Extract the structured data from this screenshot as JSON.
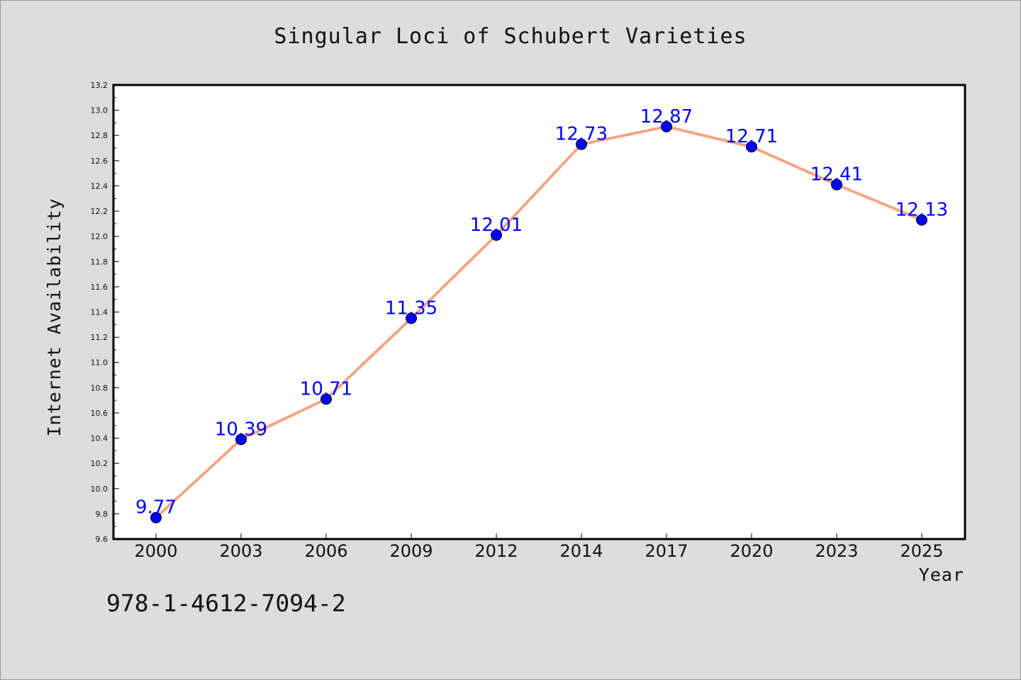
{
  "chart_data": {
    "type": "line",
    "title": "Singular Loci of Schubert Varieties",
    "xlabel": "Year",
    "ylabel": "Internet Availability",
    "categories": [
      "2000",
      "2003",
      "2006",
      "2009",
      "2012",
      "2014",
      "2017",
      "2020",
      "2023",
      "2025"
    ],
    "series": [
      {
        "values": [
          9.77,
          10.39,
          10.71,
          11.35,
          12.01,
          12.73,
          12.87,
          12.71,
          12.41,
          12.13
        ],
        "line_color": "#f4a582",
        "marker_color": "#0000ff"
      }
    ],
    "data_labels": [
      "9.77",
      "10.39",
      "10.71",
      "11.35",
      "12.01",
      "12.73",
      "12.87",
      "12.71",
      "12.41",
      "12.13"
    ],
    "ylim": [
      9.6,
      13.2
    ],
    "yticks": [
      "9.6",
      "9.8",
      "10.0",
      "10.2",
      "10.4",
      "10.6",
      "10.8",
      "11.0",
      "11.2",
      "11.4",
      "11.6",
      "11.8",
      "12.0",
      "12.2",
      "12.4",
      "12.6",
      "12.8",
      "13.0",
      "13.2"
    ],
    "grid": false,
    "legend": "none",
    "label_color": "#0000ff",
    "background_color": "#dcdcdc",
    "plot_background_color": "#ffffff"
  },
  "annotation": {
    "text": "978-1-4612-7094-2"
  }
}
